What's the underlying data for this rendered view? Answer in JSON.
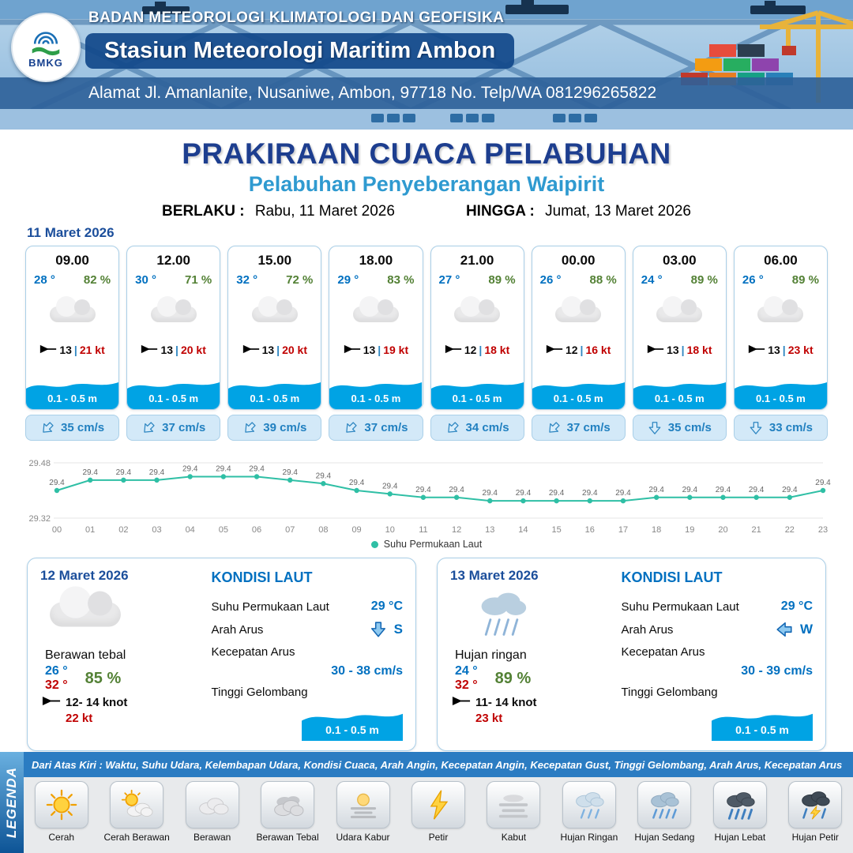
{
  "colors": {
    "accent_blue": "#0070c0",
    "dark_blue": "#1d3e8f",
    "subtitle_blue": "#2f9ad0",
    "humidity_green": "#538135",
    "gust_red": "#c00000",
    "wave_blue": "#00a3e4",
    "chart_teal": "#2fbfa5"
  },
  "header": {
    "logo_text": "BMKG",
    "agency": "BADAN METEOROLOGI KLIMATOLOGI DAN GEOFISIKA",
    "station": "Stasiun Meteorologi Maritim Ambon",
    "address": "Alamat Jl. Amanlanite, Nusaniwe, Ambon, 97718   No. Telp/WA  081296265822"
  },
  "title": {
    "main": "PRAKIRAAN CUACA PELABUHAN",
    "subtitle": "Pelabuhan Penyeberangan Waipirit",
    "valid_from_label": "BERLAKU :",
    "valid_from": "Rabu, 11 Maret 2026",
    "valid_to_label": "HINGGA :",
    "valid_to": "Jumat, 13 Maret 2026"
  },
  "forecast": {
    "date": "11 Maret 2026",
    "wind_separator": "|",
    "cards": [
      {
        "time": "09.00",
        "temp": "28 °",
        "humidity": "82 %",
        "weather": "berawan",
        "wind_avg": "13",
        "wind_gust": "21 kt",
        "wave": "0.1 - 0.5 m",
        "current": "35 cm/s",
        "current_dir": "SW"
      },
      {
        "time": "12.00",
        "temp": "30 °",
        "humidity": "71 %",
        "weather": "berawan",
        "wind_avg": "13",
        "wind_gust": "20 kt",
        "wave": "0.1 - 0.5 m",
        "current": "37 cm/s",
        "current_dir": "SW"
      },
      {
        "time": "15.00",
        "temp": "32 °",
        "humidity": "72 %",
        "weather": "berawan",
        "wind_avg": "13",
        "wind_gust": "20 kt",
        "wave": "0.1 - 0.5 m",
        "current": "39 cm/s",
        "current_dir": "SW"
      },
      {
        "time": "18.00",
        "temp": "29 °",
        "humidity": "83 %",
        "weather": "berawan",
        "wind_avg": "13",
        "wind_gust": "19 kt",
        "wave": "0.1 - 0.5 m",
        "current": "37 cm/s",
        "current_dir": "SW"
      },
      {
        "time": "21.00",
        "temp": "27 °",
        "humidity": "89 %",
        "weather": "berawan",
        "wind_avg": "12",
        "wind_gust": "18 kt",
        "wave": "0.1 - 0.5 m",
        "current": "34 cm/s",
        "current_dir": "SW"
      },
      {
        "time": "00.00",
        "temp": "26 °",
        "humidity": "88 %",
        "weather": "berawan",
        "wind_avg": "12",
        "wind_gust": "16 kt",
        "wave": "0.1 - 0.5 m",
        "current": "37 cm/s",
        "current_dir": "SW"
      },
      {
        "time": "03.00",
        "temp": "24 °",
        "humidity": "89 %",
        "weather": "berawan",
        "wind_avg": "13",
        "wind_gust": "18 kt",
        "wave": "0.1 - 0.5 m",
        "current": "35 cm/s",
        "current_dir": "S"
      },
      {
        "time": "06.00",
        "temp": "26 °",
        "humidity": "89 %",
        "weather": "berawan",
        "wind_avg": "13",
        "wind_gust": "23 kt",
        "wave": "0.1 - 0.5 m",
        "current": "33 cm/s",
        "current_dir": "S"
      }
    ]
  },
  "chart_data": {
    "type": "line",
    "title": "",
    "xlabel": "",
    "ylabel": "",
    "x": [
      "00",
      "01",
      "02",
      "03",
      "04",
      "05",
      "06",
      "07",
      "08",
      "09",
      "10",
      "11",
      "12",
      "13",
      "14",
      "15",
      "16",
      "17",
      "18",
      "19",
      "20",
      "21",
      "22",
      "23"
    ],
    "series": [
      {
        "name": "Suhu Permukaan Laut",
        "values": [
          29.4,
          29.43,
          29.43,
          29.43,
          29.44,
          29.44,
          29.44,
          29.43,
          29.42,
          29.4,
          29.39,
          29.38,
          29.38,
          29.37,
          29.37,
          29.37,
          29.37,
          29.37,
          29.38,
          29.38,
          29.38,
          29.38,
          29.38,
          29.4
        ]
      }
    ],
    "ylim": [
      29.32,
      29.48
    ],
    "yticks": [
      "29.48",
      "29.32"
    ],
    "point_label_decimals": 1,
    "line_color": "#2fbfa5",
    "legend_position": "bottom",
    "grid": true
  },
  "daily": [
    {
      "date": "12 Maret 2026",
      "condition": "Berawan tebal",
      "weather": "berawan-tebal",
      "temp_min": "26 °",
      "temp_max": "32 °",
      "humidity": "85 %",
      "wind_range": "12- 14 knot",
      "gust": "22 kt",
      "sea": {
        "title": "KONDISI LAUT",
        "sst_label": "Suhu Permukaan Laut",
        "sst": "29 °C",
        "dir_label": "Arah Arus",
        "dir": "S",
        "speed_label": "Kecepatan Arus",
        "speed": "30 - 38 cm/s",
        "wave_label": "Tinggi Gelombang",
        "wave": "0.1 - 0.5 m"
      }
    },
    {
      "date": "13 Maret 2026",
      "condition": "Hujan ringan",
      "weather": "hujan-ringan",
      "temp_min": "24 °",
      "temp_max": "32 °",
      "humidity": "89 %",
      "wind_range": "11- 14 knot",
      "gust": "23 kt",
      "sea": {
        "title": "KONDISI LAUT",
        "sst_label": "Suhu Permukaan Laut",
        "sst": "29 °C",
        "dir_label": "Arah Arus",
        "dir": "W",
        "speed_label": "Kecepatan Arus",
        "speed": "30 - 39 cm/s",
        "wave_label": "Tinggi Gelombang",
        "wave": "0.1 - 0.5 m"
      }
    }
  ],
  "legend": {
    "title": "LEGENDA",
    "note": "Dari Atas Kiri : Waktu, Suhu Udara, Kelembapan Udara, Kondisi Cuaca, Arah Angin, Kecepatan Angin, Kecepatan Gust, Tinggi Gelombang, Arah Arus, Kecepatan Arus",
    "items": [
      {
        "label": "Cerah"
      },
      {
        "label": "Cerah Berawan"
      },
      {
        "label": "Berawan"
      },
      {
        "label": "Berawan Tebal"
      },
      {
        "label": "Udara Kabur"
      },
      {
        "label": "Petir"
      },
      {
        "label": "Kabut"
      },
      {
        "label": "Hujan Ringan"
      },
      {
        "label": "Hujan Sedang"
      },
      {
        "label": "Hujan Lebat"
      },
      {
        "label": "Hujan Petir"
      }
    ]
  }
}
